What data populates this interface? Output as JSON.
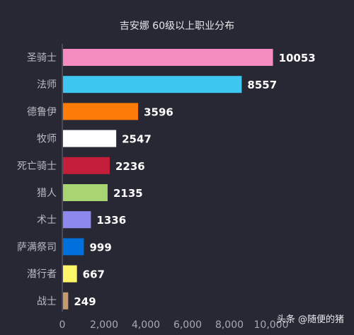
{
  "chart_data": {
    "type": "bar",
    "orientation": "horizontal",
    "title": "吉安娜 60级以上职业分布",
    "categories": [
      "圣骑士",
      "法师",
      "德鲁伊",
      "牧师",
      "死亡骑士",
      "猎人",
      "术士",
      "萨满祭司",
      "潜行者",
      "战士"
    ],
    "values": [
      10053,
      8557,
      3596,
      2547,
      2236,
      2135,
      1336,
      999,
      667,
      249
    ],
    "colors": [
      "#f48cc0",
      "#3ec8f0",
      "#fb7c08",
      "#ffffff",
      "#c41e3a",
      "#a9d472",
      "#8c88ee",
      "#0070dd",
      "#fff569",
      "#c69b6d"
    ],
    "xlim": [
      0,
      10000
    ],
    "xticks": [
      "0",
      "2,000",
      "4,000",
      "6,000",
      "8,000",
      "10,000"
    ],
    "xlabel": "",
    "ylabel": "",
    "grid": false,
    "legend": "none"
  },
  "watermark": "头条 @随便的猪"
}
